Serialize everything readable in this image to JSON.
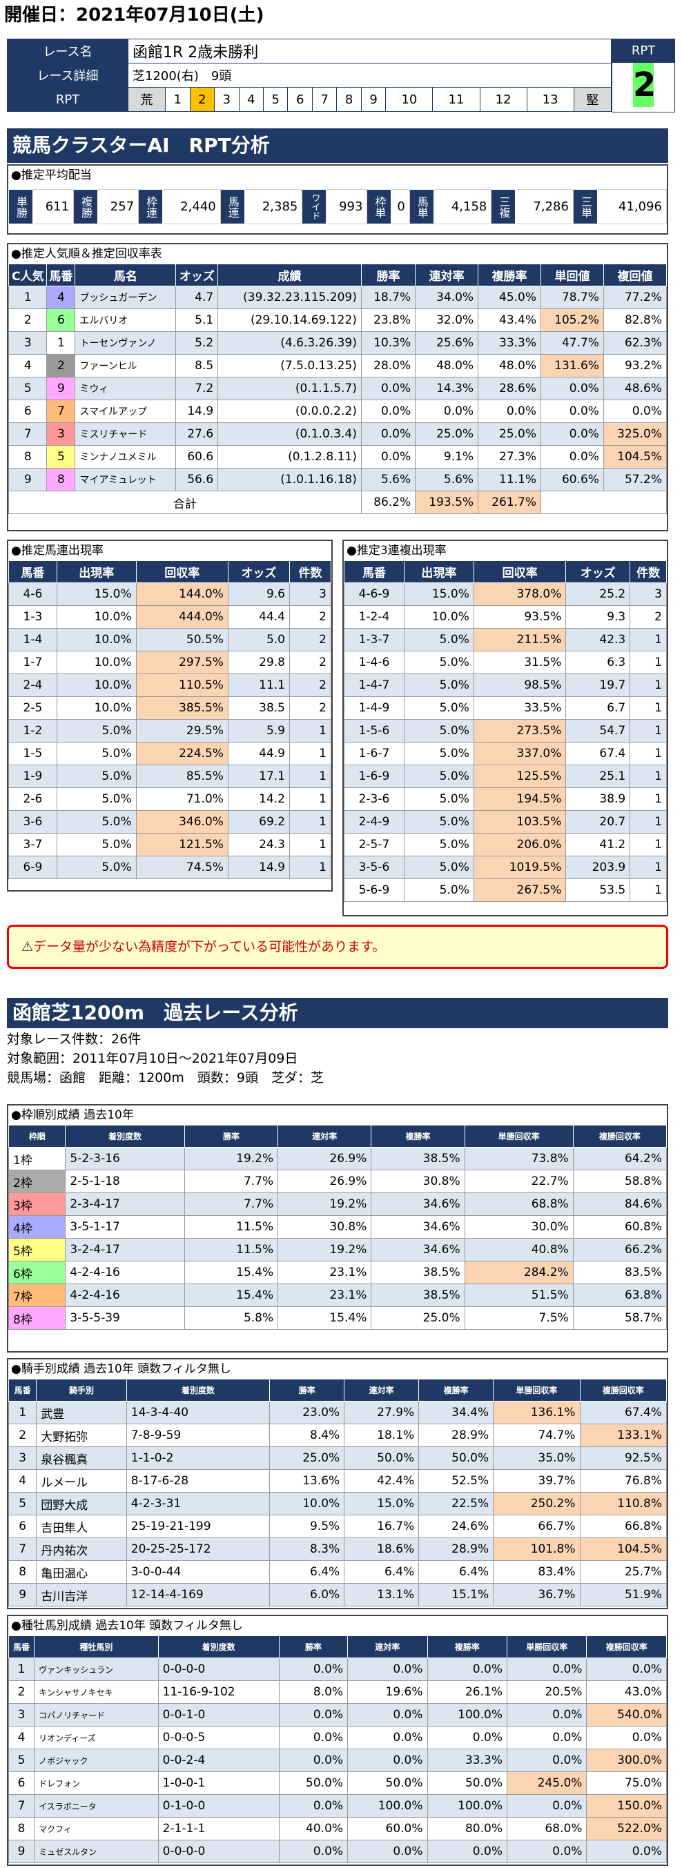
{
  "date": "開催日：2021年07月10日(土)",
  "race": {
    "name_label": "レース名",
    "name": "函館1R 2歳未勝利",
    "detail_label": "レース詳細",
    "detail": "芝1200(右)　9頭",
    "rpt_label": "RPT",
    "rpt_head": "RPT",
    "rpt_value": "2",
    "scale": [
      "荒",
      "1",
      "2",
      "3",
      "4",
      "5",
      "6",
      "7",
      "8",
      "9",
      "10",
      "11",
      "12",
      "13",
      "堅"
    ]
  },
  "ai_title": "競馬クラスターAI　RPT分析",
  "payout": {
    "title": "●推定平均配当",
    "items": [
      [
        "単勝",
        "611"
      ],
      [
        "複勝",
        "257"
      ],
      [
        "枠連",
        "2,440"
      ],
      [
        "馬連",
        "2,385"
      ],
      [
        "ワイド",
        "993"
      ],
      [
        "枠単",
        "0"
      ],
      [
        "馬単",
        "4,158"
      ],
      [
        "三複",
        "7,286"
      ],
      [
        "三単",
        "41,096"
      ]
    ]
  },
  "pop": {
    "title": "●推定人気順＆推定回収率表",
    "headers": [
      "C人気",
      "馬番",
      "馬名",
      "オッズ",
      "成績",
      "勝率",
      "連対率",
      "複勝率",
      "単回値",
      "複回値"
    ],
    "rows": [
      [
        "1",
        "4",
        "ブッシュガーデン",
        "4.7",
        "(39.32.23.115.209)",
        "18.7%",
        "34.0%",
        "45.0%",
        "78.7%",
        "77.2%"
      ],
      [
        "2",
        "6",
        "エルバリオ",
        "5.1",
        "(29.10.14.69.122)",
        "23.8%",
        "32.0%",
        "43.4%",
        "105.2%",
        "82.8%"
      ],
      [
        "3",
        "1",
        "トーセンヴァンノ",
        "5.2",
        "(4.6.3.26.39)",
        "10.3%",
        "25.6%",
        "33.3%",
        "47.7%",
        "62.3%"
      ],
      [
        "4",
        "2",
        "ファーンヒル",
        "8.5",
        "(7.5.0.13.25)",
        "28.0%",
        "48.0%",
        "48.0%",
        "131.6%",
        "93.2%"
      ],
      [
        "5",
        "9",
        "ミウィ",
        "7.2",
        "(0.1.1.5.7)",
        "0.0%",
        "14.3%",
        "28.6%",
        "0.0%",
        "48.6%"
      ],
      [
        "6",
        "7",
        "スマイルアップ",
        "14.9",
        "(0.0.0.2.2)",
        "0.0%",
        "0.0%",
        "0.0%",
        "0.0%",
        "0.0%"
      ],
      [
        "7",
        "3",
        "ミスリチャード",
        "27.6",
        "(0.1.0.3.4)",
        "0.0%",
        "25.0%",
        "25.0%",
        "0.0%",
        "325.0%"
      ],
      [
        "8",
        "5",
        "ミンナノユメミル",
        "60.6",
        "(0.1.2.8.11)",
        "0.0%",
        "9.1%",
        "27.3%",
        "0.0%",
        "104.5%"
      ],
      [
        "9",
        "8",
        "マイアミュレット",
        "56.6",
        "(1.0.1.16.18)",
        "5.6%",
        "5.6%",
        "11.1%",
        "60.6%",
        "57.2%"
      ]
    ],
    "total_label": "合計",
    "totals": [
      "86.2%",
      "193.5%",
      "261.7%"
    ]
  },
  "umaren": {
    "title": "●推定馬連出現率",
    "headers": [
      "馬番",
      "出現率",
      "回収率",
      "オッズ",
      "件数"
    ],
    "rows": [
      [
        "4-6",
        "15.0%",
        "144.0%",
        "9.6",
        "3"
      ],
      [
        "1-3",
        "10.0%",
        "444.0%",
        "44.4",
        "2"
      ],
      [
        "1-4",
        "10.0%",
        "50.5%",
        "5.0",
        "2"
      ],
      [
        "1-7",
        "10.0%",
        "297.5%",
        "29.8",
        "2"
      ],
      [
        "2-4",
        "10.0%",
        "110.5%",
        "11.1",
        "2"
      ],
      [
        "2-5",
        "10.0%",
        "385.5%",
        "38.5",
        "2"
      ],
      [
        "1-2",
        "5.0%",
        "29.5%",
        "5.9",
        "1"
      ],
      [
        "1-5",
        "5.0%",
        "224.5%",
        "44.9",
        "1"
      ],
      [
        "1-9",
        "5.0%",
        "85.5%",
        "17.1",
        "1"
      ],
      [
        "2-6",
        "5.0%",
        "71.0%",
        "14.2",
        "1"
      ],
      [
        "3-6",
        "5.0%",
        "346.0%",
        "69.2",
        "1"
      ],
      [
        "3-7",
        "5.0%",
        "121.5%",
        "24.3",
        "1"
      ],
      [
        "6-9",
        "5.0%",
        "74.5%",
        "14.9",
        "1"
      ]
    ]
  },
  "sanren": {
    "title": "●推定3連複出現率",
    "headers": [
      "馬番",
      "出現率",
      "回収率",
      "オッズ",
      "件数"
    ],
    "rows": [
      [
        "4-6-9",
        "15.0%",
        "378.0%",
        "25.2",
        "3"
      ],
      [
        "1-2-4",
        "10.0%",
        "93.5%",
        "9.3",
        "2"
      ],
      [
        "1-3-7",
        "5.0%",
        "211.5%",
        "42.3",
        "1"
      ],
      [
        "1-4-6",
        "5.0%",
        "31.5%",
        "6.3",
        "1"
      ],
      [
        "1-4-7",
        "5.0%",
        "98.5%",
        "19.7",
        "1"
      ],
      [
        "1-4-9",
        "5.0%",
        "33.5%",
        "6.7",
        "1"
      ],
      [
        "1-5-6",
        "5.0%",
        "273.5%",
        "54.7",
        "1"
      ],
      [
        "1-6-7",
        "5.0%",
        "337.0%",
        "67.4",
        "1"
      ],
      [
        "1-6-9",
        "5.0%",
        "125.5%",
        "25.1",
        "1"
      ],
      [
        "2-3-6",
        "5.0%",
        "194.5%",
        "38.9",
        "1"
      ],
      [
        "2-4-9",
        "5.0%",
        "103.5%",
        "20.7",
        "1"
      ],
      [
        "2-5-7",
        "5.0%",
        "206.0%",
        "41.2",
        "1"
      ],
      [
        "3-5-6",
        "5.0%",
        "1019.5%",
        "203.9",
        "1"
      ],
      [
        "5-6-9",
        "5.0%",
        "267.5%",
        "53.5",
        "1"
      ]
    ]
  },
  "warning": "データ量が少ない為精度が下がっている可能性があります。",
  "past_title": "函館芝1200m　過去レース分析",
  "info": [
    "対象レース件数：26件",
    "対象範囲：2011年07月10日〜2021年07月09日",
    "競馬場：函館　距離：1200m　頭数：9頭　芝ダ：芝"
  ],
  "waku": {
    "title": "●枠順別成績 過去10年",
    "headers": [
      "枠順",
      "着別度数",
      "勝率",
      "連対率",
      "複勝率",
      "単勝回収率",
      "複勝回収率"
    ],
    "rows": [
      [
        "1枠",
        "5-2-3-16",
        "19.2%",
        "26.9%",
        "38.5%",
        "73.8%",
        "64.2%"
      ],
      [
        "2枠",
        "2-5-1-18",
        "7.7%",
        "26.9%",
        "30.8%",
        "22.7%",
        "58.8%"
      ],
      [
        "3枠",
        "2-3-4-17",
        "7.7%",
        "19.2%",
        "34.6%",
        "68.8%",
        "84.6%"
      ],
      [
        "4枠",
        "3-5-1-17",
        "11.5%",
        "30.8%",
        "34.6%",
        "30.0%",
        "60.8%"
      ],
      [
        "5枠",
        "3-2-4-17",
        "11.5%",
        "19.2%",
        "34.6%",
        "40.8%",
        "66.2%"
      ],
      [
        "6枠",
        "4-2-4-16",
        "15.4%",
        "23.1%",
        "38.5%",
        "284.2%",
        "83.5%"
      ],
      [
        "7枠",
        "4-2-4-16",
        "15.4%",
        "23.1%",
        "38.5%",
        "51.5%",
        "63.8%"
      ],
      [
        "8枠",
        "3-5-5-39",
        "5.8%",
        "15.4%",
        "25.0%",
        "7.5%",
        "58.7%"
      ]
    ]
  },
  "jockey": {
    "title": "●騎手別成績 過去10年 頭数フィルタ無し",
    "headers": [
      "馬番",
      "騎手別",
      "着別度数",
      "勝率",
      "連対率",
      "複勝率",
      "単勝回収率",
      "複勝回収率"
    ],
    "rows": [
      [
        "1",
        "武豊",
        "14-3-4-40",
        "23.0%",
        "27.9%",
        "34.4%",
        "136.1%",
        "67.4%"
      ],
      [
        "2",
        "大野拓弥",
        "7-8-9-59",
        "8.4%",
        "18.1%",
        "28.9%",
        "74.7%",
        "133.1%"
      ],
      [
        "3",
        "泉谷楓真",
        "1-1-0-2",
        "25.0%",
        "50.0%",
        "50.0%",
        "35.0%",
        "92.5%"
      ],
      [
        "4",
        "ルメール",
        "8-17-6-28",
        "13.6%",
        "42.4%",
        "52.5%",
        "39.7%",
        "76.8%"
      ],
      [
        "5",
        "団野大成",
        "4-2-3-31",
        "10.0%",
        "15.0%",
        "22.5%",
        "250.2%",
        "110.8%"
      ],
      [
        "6",
        "吉田隼人",
        "25-19-21-199",
        "9.5%",
        "16.7%",
        "24.6%",
        "66.7%",
        "66.8%"
      ],
      [
        "7",
        "丹内祐次",
        "20-25-25-172",
        "8.3%",
        "18.6%",
        "28.9%",
        "101.8%",
        "104.5%"
      ],
      [
        "8",
        "亀田温心",
        "3-0-0-44",
        "6.4%",
        "6.4%",
        "6.4%",
        "83.4%",
        "25.7%"
      ],
      [
        "9",
        "古川吉洋",
        "12-14-4-169",
        "6.0%",
        "13.1%",
        "15.1%",
        "36.7%",
        "51.9%"
      ]
    ]
  },
  "sire": {
    "title": "●種牡馬別成績 過去10年 頭数フィルタ無し",
    "headers": [
      "馬番",
      "種牡馬別",
      "着別度数",
      "勝率",
      "連対率",
      "複勝率",
      "単勝回収率",
      "複勝回収率"
    ],
    "rows": [
      [
        "1",
        "ヴァンキッシュラン",
        "0-0-0-0",
        "0.0%",
        "0.0%",
        "0.0%",
        "0.0%",
        "0.0%"
      ],
      [
        "2",
        "キンシャサノキセキ",
        "11-16-9-102",
        "8.0%",
        "19.6%",
        "26.1%",
        "20.5%",
        "43.0%"
      ],
      [
        "3",
        "コパノリチャード",
        "0-0-1-0",
        "0.0%",
        "0.0%",
        "100.0%",
        "0.0%",
        "540.0%"
      ],
      [
        "4",
        "リオンディーズ",
        "0-0-0-5",
        "0.0%",
        "0.0%",
        "0.0%",
        "0.0%",
        "0.0%"
      ],
      [
        "5",
        "ノボジャック",
        "0-0-2-4",
        "0.0%",
        "0.0%",
        "33.3%",
        "0.0%",
        "300.0%"
      ],
      [
        "6",
        "ドレフォン",
        "1-0-0-1",
        "50.0%",
        "50.0%",
        "50.0%",
        "245.0%",
        "75.0%"
      ],
      [
        "7",
        "イスラボニータ",
        "0-1-0-0",
        "0.0%",
        "100.0%",
        "100.0%",
        "0.0%",
        "150.0%"
      ],
      [
        "8",
        "マクフィ",
        "2-1-1-1",
        "40.0%",
        "60.0%",
        "80.0%",
        "68.0%",
        "522.0%"
      ],
      [
        "9",
        "ミュゼスルタン",
        "0-0-0-0",
        "0.0%",
        "0.0%",
        "0.0%",
        "0.0%",
        "0.0%"
      ]
    ]
  }
}
